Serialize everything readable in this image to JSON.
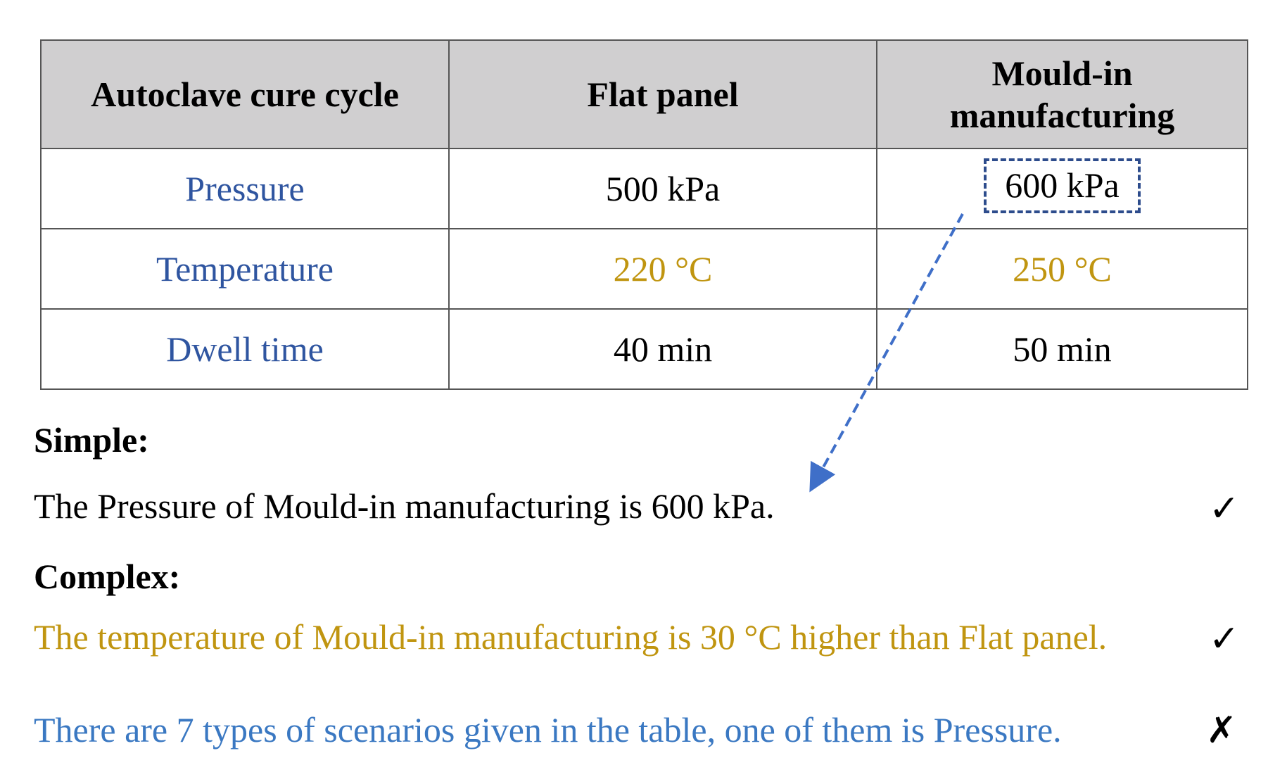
{
  "table": {
    "headers": [
      "Autoclave cure cycle",
      "Flat panel",
      "Mould-in manufacturing"
    ],
    "rows": [
      {
        "label": "Pressure",
        "flat": "500 kPa",
        "mould": "600 kPa"
      },
      {
        "label": "Temperature",
        "flat": "220 °C",
        "mould": "250 °C"
      },
      {
        "label": "Dwell time",
        "flat": "40 min",
        "mould": "50 min"
      }
    ]
  },
  "simple": {
    "heading": "Simple:",
    "sentence": "The Pressure of Mould-in manufacturing is 600 kPa.",
    "mark": "✓"
  },
  "complex": {
    "heading": "Complex:",
    "sentence1": "The temperature of Mould-in manufacturing is 30 °C  higher than Flat panel.",
    "mark1": "✓",
    "sentence2": "There are 7 types of scenarios given in the table, one of them is Pressure.",
    "mark2": "✗"
  },
  "colors": {
    "row_label": "#2f55a0",
    "temperature": "#c09510",
    "header_bg": "#d0cfd0",
    "highlight_box": "#2d4c8c",
    "arrow": "#3f6fc8",
    "sentence_blue": "#3a78c2"
  }
}
